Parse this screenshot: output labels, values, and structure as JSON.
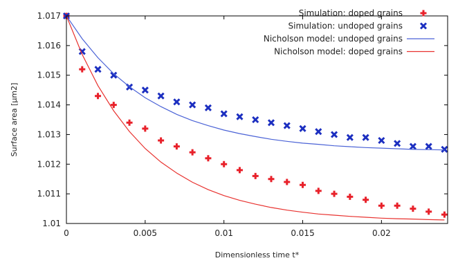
{
  "chart_data": {
    "type": "scatter",
    "xlabel": "Dimensionless time t*",
    "ylabel": "Surface area [µm2]",
    "xlim": [
      0,
      0.0242
    ],
    "ylim": [
      1.01,
      1.017
    ],
    "xticks": [
      "0",
      "0.005",
      "0.01",
      "0.015",
      "0.02"
    ],
    "yticks": [
      "1.01",
      "1.011",
      "1.012",
      "1.013",
      "1.014",
      "1.015",
      "1.016",
      "1.017"
    ],
    "grid": false,
    "legend_position": "top-right",
    "series": [
      {
        "name": "Simulation: doped grains",
        "kind": "scatter",
        "marker": "plus",
        "color": "#e8212a",
        "x": [
          0,
          0.001,
          0.002,
          0.003,
          0.004,
          0.005,
          0.006,
          0.007,
          0.008,
          0.009,
          0.01,
          0.011,
          0.012,
          0.013,
          0.014,
          0.015,
          0.016,
          0.017,
          0.018,
          0.019,
          0.02,
          0.021,
          0.022,
          0.023,
          0.024
        ],
        "y": [
          1.017,
          1.0152,
          1.0143,
          1.014,
          1.0134,
          1.0132,
          1.0128,
          1.0126,
          1.0124,
          1.0122,
          1.012,
          1.0118,
          1.0116,
          1.0115,
          1.0114,
          1.0113,
          1.0111,
          1.011,
          1.0109,
          1.0108,
          1.0106,
          1.0106,
          1.0105,
          1.0104,
          1.0103
        ]
      },
      {
        "name": "Simulation: undoped grains",
        "kind": "scatter",
        "marker": "cross",
        "color": "#1c2fc0",
        "x": [
          0,
          0.001,
          0.002,
          0.003,
          0.004,
          0.005,
          0.006,
          0.007,
          0.008,
          0.009,
          0.01,
          0.011,
          0.012,
          0.013,
          0.014,
          0.015,
          0.016,
          0.017,
          0.018,
          0.019,
          0.02,
          0.021,
          0.022,
          0.023,
          0.024
        ],
        "y": [
          1.017,
          1.0158,
          1.0152,
          1.015,
          1.0146,
          1.0145,
          1.0143,
          1.0141,
          1.014,
          1.0139,
          1.0137,
          1.0136,
          1.0135,
          1.0134,
          1.0133,
          1.0132,
          1.0131,
          1.013,
          1.0129,
          1.0129,
          1.0128,
          1.0127,
          1.0126,
          1.0126,
          1.0125
        ]
      },
      {
        "name": "Nicholson model: undoped grains",
        "kind": "line",
        "color": "#4a62d6",
        "x": [
          0,
          0.001,
          0.002,
          0.003,
          0.004,
          0.005,
          0.006,
          0.007,
          0.008,
          0.009,
          0.01,
          0.011,
          0.012,
          0.013,
          0.014,
          0.015,
          0.016,
          0.017,
          0.018,
          0.019,
          0.02,
          0.021,
          0.022,
          0.023,
          0.024
        ],
        "y": [
          1.017,
          1.01623,
          1.01559,
          1.01505,
          1.01461,
          1.01424,
          1.01394,
          1.01368,
          1.01347,
          1.0133,
          1.01315,
          1.01303,
          1.01293,
          1.01284,
          1.01277,
          1.01271,
          1.01267,
          1.01262,
          1.01259,
          1.01256,
          1.01254,
          1.01252,
          1.0125,
          1.01249,
          1.01248
        ]
      },
      {
        "name": "Nicholson model: doped grains",
        "kind": "line",
        "color": "#e8312e",
        "x": [
          0,
          0.001,
          0.002,
          0.003,
          0.004,
          0.005,
          0.006,
          0.007,
          0.008,
          0.009,
          0.01,
          0.011,
          0.012,
          0.013,
          0.014,
          0.015,
          0.016,
          0.017,
          0.018,
          0.019,
          0.02,
          0.021,
          0.022,
          0.023,
          0.024
        ],
        "y": [
          1.017,
          1.0157,
          1.01465,
          1.0138,
          1.0131,
          1.01253,
          1.01207,
          1.0117,
          1.01139,
          1.01114,
          1.01094,
          1.01078,
          1.01065,
          1.01054,
          1.01045,
          1.01038,
          1.01032,
          1.01028,
          1.01024,
          1.01021,
          1.01018,
          1.01016,
          1.01015,
          1.01013,
          1.01012
        ]
      }
    ]
  }
}
